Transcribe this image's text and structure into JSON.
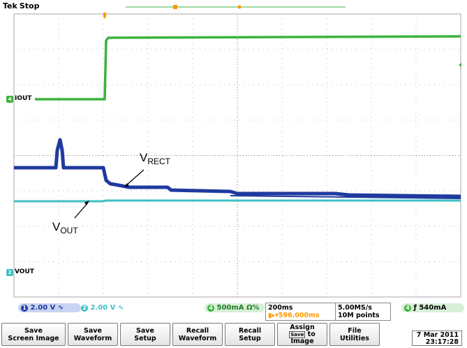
{
  "header": {
    "brand": "Tek",
    "state": "Stop"
  },
  "channels": {
    "ch1": {
      "label": "IOUT",
      "number": "1",
      "color": "#1f7a2a"
    },
    "ch2": {
      "label": "VOUT",
      "number": "2",
      "color": "#3fa7c6"
    }
  },
  "annotations": {
    "vrect": {
      "main": "V",
      "sub": "RECT"
    },
    "vout": {
      "main": "V",
      "sub": "OUT"
    }
  },
  "status": {
    "ch1_badge": "1",
    "ch1_scale": "2.00 V",
    "ch1_coupling": "∿",
    "ch2_badge": "2",
    "ch2_scale": "2.00 V",
    "ch2_coupling": "∿",
    "ch4_badge": "4",
    "ch4_scale": "500mA Ω%",
    "timebase": "200ms",
    "trigger_pos": "596.000ms",
    "trigger_prefix": "▮▸▾",
    "sample_rate": "5.00MS/s",
    "record_length": "10M points",
    "trig_badge": "4",
    "trig_slope": "ƒ",
    "trig_level": "540mA"
  },
  "menu": {
    "save_screen_image": [
      "Save",
      "Screen Image"
    ],
    "save_waveform": [
      "Save",
      "Waveform"
    ],
    "save_setup": [
      "Save",
      "Setup"
    ],
    "recall_waveform": [
      "Recall",
      "Waveform"
    ],
    "recall_setup": [
      "Recall",
      "Setup"
    ],
    "assign": [
      "Assign",
      "Save",
      "to",
      "Image"
    ],
    "file_utilities": [
      "File",
      "Utilities"
    ]
  },
  "datetime": {
    "date": "7 Mar 2011",
    "time": "23:17:28"
  },
  "colors": {
    "ch4_green": "#3cb33c",
    "ch1_blue": "#1f3a9e",
    "ch2_cyan": "#3fbfc4",
    "grid": "#a8a8a8",
    "trigger_orange": "#ff9900"
  }
}
